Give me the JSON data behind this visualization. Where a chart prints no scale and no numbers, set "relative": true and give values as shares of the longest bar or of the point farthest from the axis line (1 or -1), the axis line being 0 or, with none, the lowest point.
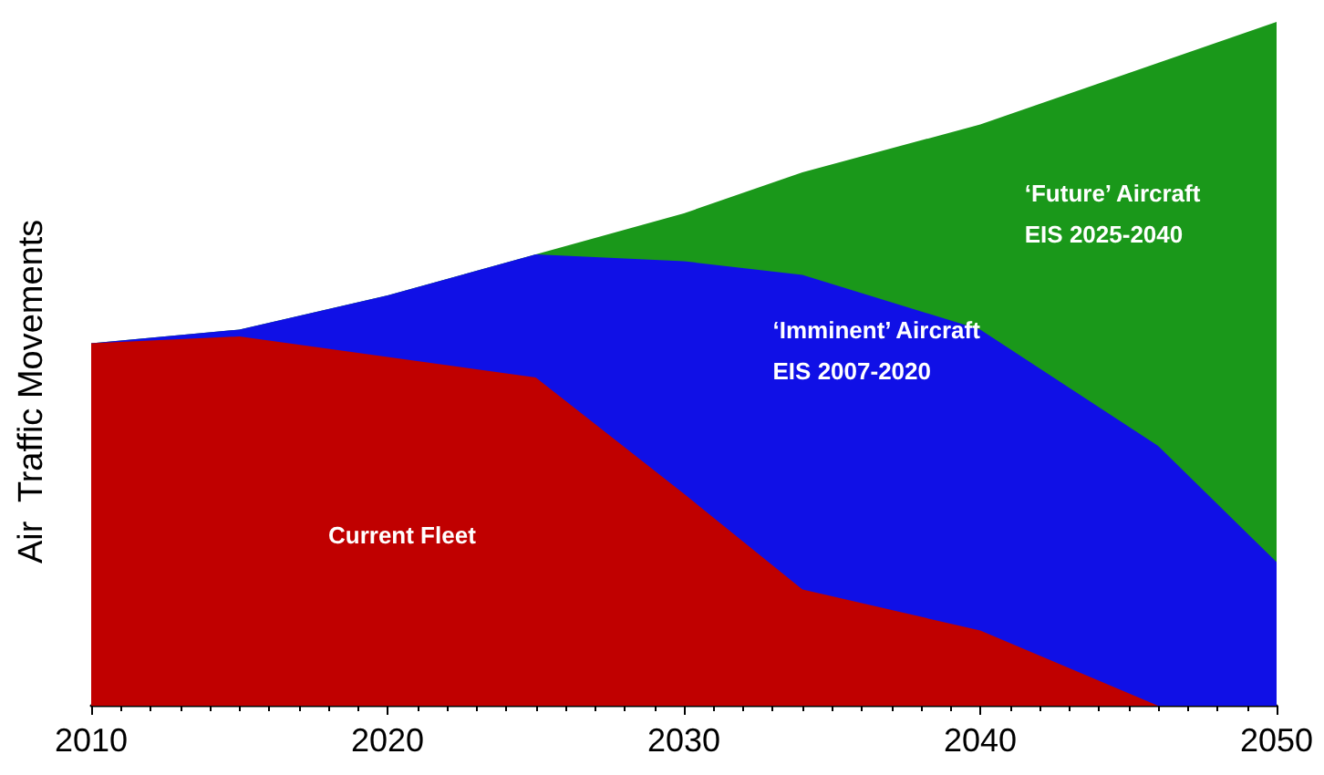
{
  "chart_data": {
    "type": "area",
    "stacked": true,
    "relative": true,
    "ylabel": "Air  Traffic Movements",
    "x": [
      2010,
      2015,
      2020,
      2025,
      2030,
      2034,
      2040,
      2046,
      2050
    ],
    "xlim": [
      2010,
      2050
    ],
    "xticks": [
      2010,
      2020,
      2030,
      2040,
      2050
    ],
    "grid": false,
    "legend": false,
    "series": [
      {
        "name": "Current Fleet",
        "color": "#c00000",
        "values": [
          0.53,
          0.54,
          0.51,
          0.48,
          0.31,
          0.17,
          0.11,
          0,
          0
        ]
      },
      {
        "name": "‘Imminent’ Aircraft",
        "color": "#1010e6",
        "values": [
          0,
          0.01,
          0.09,
          0.18,
          0.34,
          0.46,
          0.44,
          0.38,
          0.21
        ]
      },
      {
        "name": "‘Future’ Aircraft",
        "color": "#1a981a",
        "values": [
          0,
          0,
          0,
          0,
          0.07,
          0.15,
          0.3,
          0.56,
          0.79
        ]
      }
    ],
    "annotations": [
      "EIS 2007-2020",
      "EIS 2025-2040"
    ]
  }
}
